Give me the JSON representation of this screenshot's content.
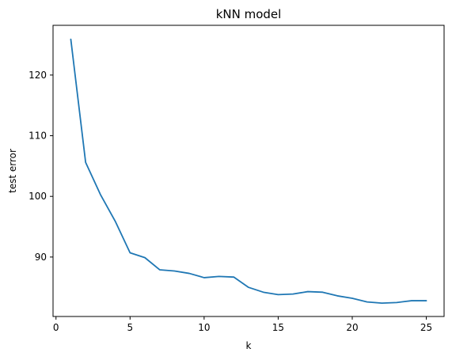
{
  "chart_data": {
    "type": "line",
    "title": "kNN model",
    "xlabel": "k",
    "ylabel": "test error",
    "xlim": [
      -0.2,
      26.2
    ],
    "ylim": [
      80.2,
      128.2
    ],
    "xticks": [
      0,
      5,
      10,
      15,
      20,
      25
    ],
    "yticks": [
      90,
      100,
      110,
      120
    ],
    "grid": false,
    "line_color": "#1f77b4",
    "series": [
      {
        "x": [
          1,
          2,
          3,
          4,
          5,
          6,
          7,
          8,
          9,
          10,
          11,
          12,
          13,
          14,
          15,
          16,
          17,
          18,
          19,
          20,
          21,
          22,
          23,
          24,
          25
        ],
        "values": [
          125.9,
          105.6,
          100.3,
          95.9,
          90.7,
          89.9,
          87.9,
          87.7,
          87.3,
          86.6,
          86.8,
          86.7,
          85.0,
          84.2,
          83.8,
          83.9,
          84.3,
          84.2,
          83.6,
          83.2,
          82.6,
          82.4,
          82.5,
          82.8,
          82.8
        ]
      }
    ]
  }
}
